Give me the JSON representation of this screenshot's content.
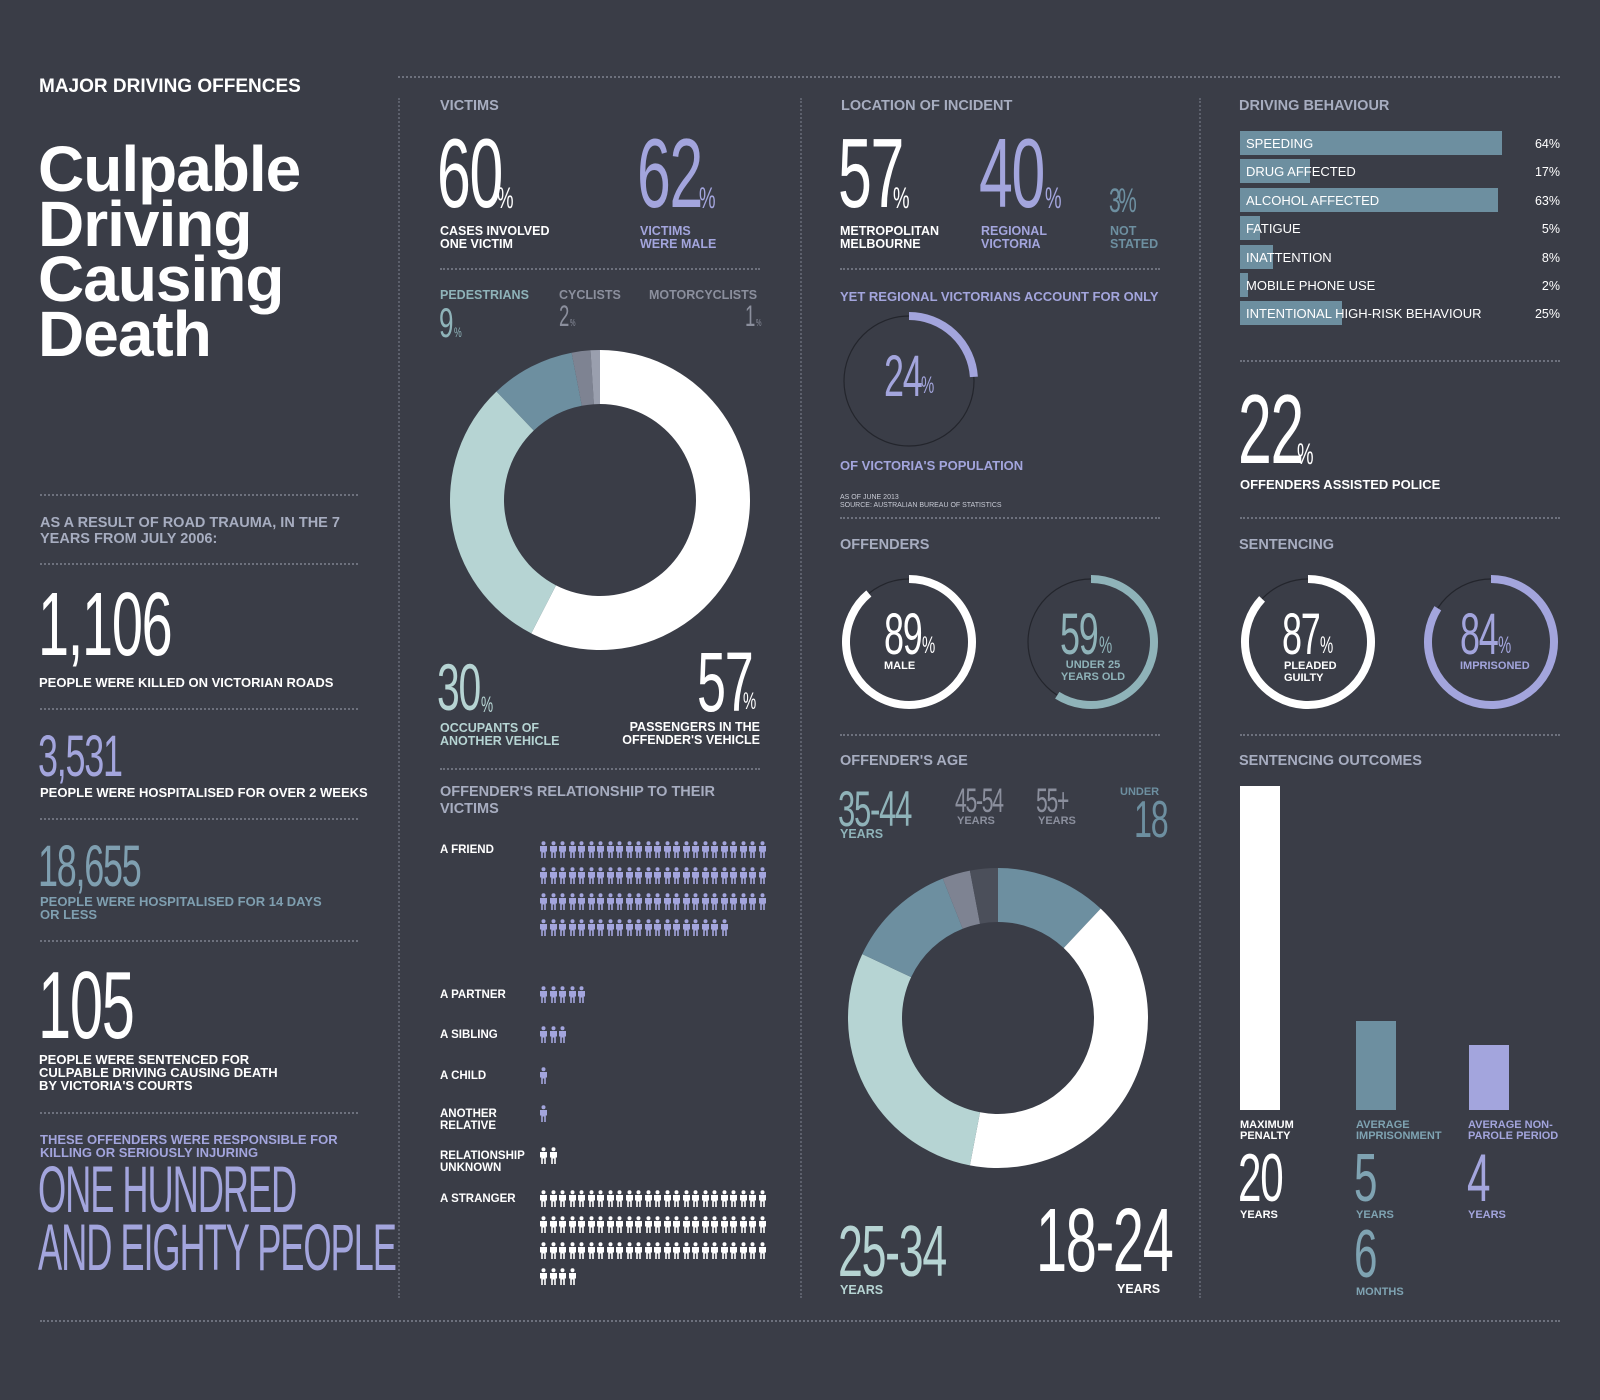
{
  "header": {
    "kicker": "MAJOR DRIVING OFFENCES",
    "title_lines": [
      "Culpable",
      "Driving",
      "Causing",
      "Death"
    ]
  },
  "left": {
    "intro": "AS A RESULT OF ROAD TRAUMA, IN THE 7 YEARS  FROM JULY 2006:",
    "killed": {
      "value": "1,106",
      "label": "PEOPLE WERE KILLED ON VICTORIAN ROADS"
    },
    "hosp_long": {
      "value": "3,531",
      "label": "PEOPLE WERE HOSPITALISED FOR OVER 2 WEEKS"
    },
    "hosp_short": {
      "value": "18,655",
      "label_lines": [
        "PEOPLE WERE HOSPITALISED FOR 14 DAYS",
        "OR LESS"
      ]
    },
    "sentenced": {
      "value": "105",
      "label_lines": [
        "PEOPLE WERE SENTENCED FOR",
        "CULPABLE DRIVING CAUSING DEATH",
        "BY VICTORIA'S COURTS"
      ]
    },
    "responsible": {
      "label_lines": [
        "THESE OFFENDERS WERE RESPONSIBLE FOR",
        "KILLING OR SERIOUSLY INJURING"
      ],
      "big_lines": [
        "ONE HUNDRED",
        "AND EIGHTY PEOPLE"
      ]
    }
  },
  "victims": {
    "title": "VICTIMS",
    "one_victim": {
      "value": "60",
      "unit": "%",
      "label_lines": [
        "CASES INVOLVED",
        "ONE VICTIM"
      ]
    },
    "male": {
      "value": "62",
      "unit": "%",
      "label_lines": [
        "VICTIMS",
        "WERE MALE"
      ]
    },
    "types": [
      {
        "name": "PEDESTRIANS",
        "value": "9",
        "unit": "%"
      },
      {
        "name": "CYCLISTS",
        "value": "2",
        "unit": "%"
      },
      {
        "name": "MOTORCYCLISTS",
        "value": "1",
        "unit": "%"
      }
    ],
    "occupants": {
      "value": "30",
      "unit": "%",
      "label_lines": [
        "OCCUPANTS OF",
        "ANOTHER VEHICLE"
      ]
    },
    "passengers": {
      "value": "57",
      "unit": "%",
      "label_lines": [
        "PASSENGERS IN THE",
        "OFFENDER'S VEHICLE"
      ]
    }
  },
  "relationship": {
    "title_lines": [
      "OFFENDER'S RELATIONSHIP TO THEIR",
      "VICTIMS"
    ],
    "rows": [
      {
        "label_lines": [
          "A FRIEND"
        ],
        "count": 92,
        "color": "#a3a5dd"
      },
      {
        "label_lines": [
          "A PARTNER"
        ],
        "count": 5,
        "color": "#a3a5dd"
      },
      {
        "label_lines": [
          "A SIBLING"
        ],
        "count": 3,
        "color": "#a3a5dd"
      },
      {
        "label_lines": [
          "A CHILD"
        ],
        "count": 1,
        "color": "#a3a5dd"
      },
      {
        "label_lines": [
          "ANOTHER",
          "RELATIVE"
        ],
        "count": 1,
        "color": "#a3a5dd"
      },
      {
        "label_lines": [
          "RELATIONSHIP",
          "UNKNOWN"
        ],
        "count": 2,
        "color": "#ffffff"
      },
      {
        "label_lines": [
          "A STRANGER"
        ],
        "count": 76,
        "color": "#ffffff"
      }
    ]
  },
  "location": {
    "title": "LOCATION OF INCIDENT",
    "metro": {
      "value": "57",
      "unit": "%",
      "label_lines": [
        "METROPOLITAN",
        "MELBOURNE"
      ]
    },
    "regional": {
      "value": "40",
      "unit": "%",
      "label_lines": [
        "REGIONAL",
        "VICTORIA"
      ]
    },
    "not_stated": {
      "value": "3",
      "unit": "%",
      "label_lines": [
        "NOT",
        "STATED"
      ]
    },
    "yet_label": "YET REGIONAL VICTORIANS ACCOUNT FOR ONLY",
    "population": {
      "value": "24",
      "unit": "%",
      "label": "OF VICTORIA'S POPULATION"
    },
    "source_lines": [
      "AS OF JUNE 2013",
      "SOURCE: AUSTRALIAN BUREAU OF STATISTICS"
    ]
  },
  "offenders": {
    "title": "OFFENDERS",
    "male": {
      "value": "89",
      "unit": "%",
      "label": "MALE",
      "color": "#ffffff"
    },
    "under25": {
      "value": "59",
      "unit": "%",
      "label_lines": [
        "UNDER 25",
        "YEARS OLD"
      ],
      "color": "#8fb3b9"
    }
  },
  "age": {
    "title": "OFFENDER'S AGE",
    "a3544": {
      "value": "35-44",
      "label": "YEARS"
    },
    "a4554": {
      "value": "45-54",
      "label": "YEARS"
    },
    "a55": {
      "value": "55+",
      "label": "YEARS"
    },
    "u18": {
      "prefix": "UNDER",
      "value": "18"
    },
    "a2534": {
      "value": "25-34",
      "label": "YEARS"
    },
    "a1824": {
      "value": "18-24",
      "label": "YEARS"
    }
  },
  "behaviour": {
    "title": "DRIVING BEHAVIOUR",
    "assisted": {
      "value": "22",
      "unit": "%",
      "label": "OFFENDERS ASSISTED POLICE"
    }
  },
  "sentencing": {
    "title": "SENTENCING",
    "guilty": {
      "value": "87",
      "unit": "%",
      "label_lines": [
        "PLEADED",
        "GUILTY"
      ],
      "color": "#ffffff"
    },
    "imprisoned": {
      "value": "84",
      "unit": "%",
      "label": "IMPRISONED",
      "color": "#a3a5dd"
    }
  },
  "outcomes": {
    "title": "SENTENCING OUTCOMES",
    "max": {
      "label_lines": [
        "MAXIMUM",
        "PENALTY"
      ],
      "value": "20",
      "unit": "YEARS"
    },
    "avg": {
      "label_lines": [
        "AVERAGE",
        "IMPRISONMENT"
      ],
      "value": "5",
      "unit": "YEARS",
      "value2": "6",
      "unit2": "MONTHS"
    },
    "nonparole": {
      "label_lines": [
        "AVERAGE NON-",
        "PAROLE PERIOD"
      ],
      "value": "4",
      "unit": "YEARS"
    }
  },
  "chart_data": [
    {
      "type": "pie",
      "title": "VICTIMS",
      "categories": [
        "PASSENGERS IN THE OFFENDER'S VEHICLE",
        "OCCUPANTS OF ANOTHER VEHICLE",
        "PEDESTRIANS",
        "CYCLISTS",
        "MOTORCYCLISTS"
      ],
      "values": [
        57,
        30,
        9,
        2,
        1
      ],
      "colors": [
        "#ffffff",
        "#b6d4d3",
        "#6d8fa0",
        "#7e8392",
        "#9a9fae"
      ]
    },
    {
      "type": "pie",
      "title": "OFFENDER'S AGE",
      "categories": [
        "18-24",
        "25-34",
        "35-44",
        "45-54",
        "55+",
        "UNDER 18"
      ],
      "values": [
        41,
        29,
        12,
        3,
        3,
        12
      ],
      "order": [
        "UNDER 18",
        "18-24",
        "25-34",
        "35-44",
        "45-54",
        "55+"
      ],
      "colors": {
        "UNDER 18": "#6d8fa0",
        "18-24": "#ffffff",
        "25-34": "#b6d4d3",
        "35-44": "#6d8fa0",
        "45-54": "#7e8392",
        "55+": "#4b4f5a"
      }
    },
    {
      "type": "bar",
      "title": "DRIVING BEHAVIOUR",
      "categories": [
        "SPEEDING",
        "DRUG AFFECTED",
        "ALCOHOL AFFECTED",
        "FATIGUE",
        "INATTENTION",
        "MOBILE PHONE USE",
        "INTENTIONAL HIGH-RISK BEHAVIOUR"
      ],
      "values": [
        64,
        17,
        63,
        5,
        8,
        2,
        25
      ],
      "labels": [
        "64%",
        "17%",
        "63%",
        "5%",
        "8%",
        "2%",
        "25%"
      ],
      "ylim": [
        0,
        64
      ]
    },
    {
      "type": "bar",
      "title": "SENTENCING OUTCOMES",
      "categories": [
        "MAXIMUM PENALTY",
        "AVERAGE IMPRISONMENT",
        "AVERAGE NON-PAROLE PERIOD"
      ],
      "values": [
        20,
        5.5,
        4
      ],
      "colors": [
        "#ffffff",
        "#6d8fa0",
        "#a3a5dd"
      ]
    },
    {
      "type": "pie",
      "title": "YET REGIONAL VICTORIANS ACCOUNT FOR ONLY",
      "categories": [
        "OF VICTORIA'S POPULATION"
      ],
      "values": [
        24
      ]
    },
    {
      "type": "pie",
      "title": "OFFENDERS",
      "categories": [
        "MALE",
        "UNDER 25 YEARS OLD"
      ],
      "values": [
        89,
        59
      ]
    },
    {
      "type": "pie",
      "title": "SENTENCING",
      "categories": [
        "PLEADED GUILTY",
        "IMPRISONED"
      ],
      "values": [
        87,
        84
      ]
    }
  ]
}
